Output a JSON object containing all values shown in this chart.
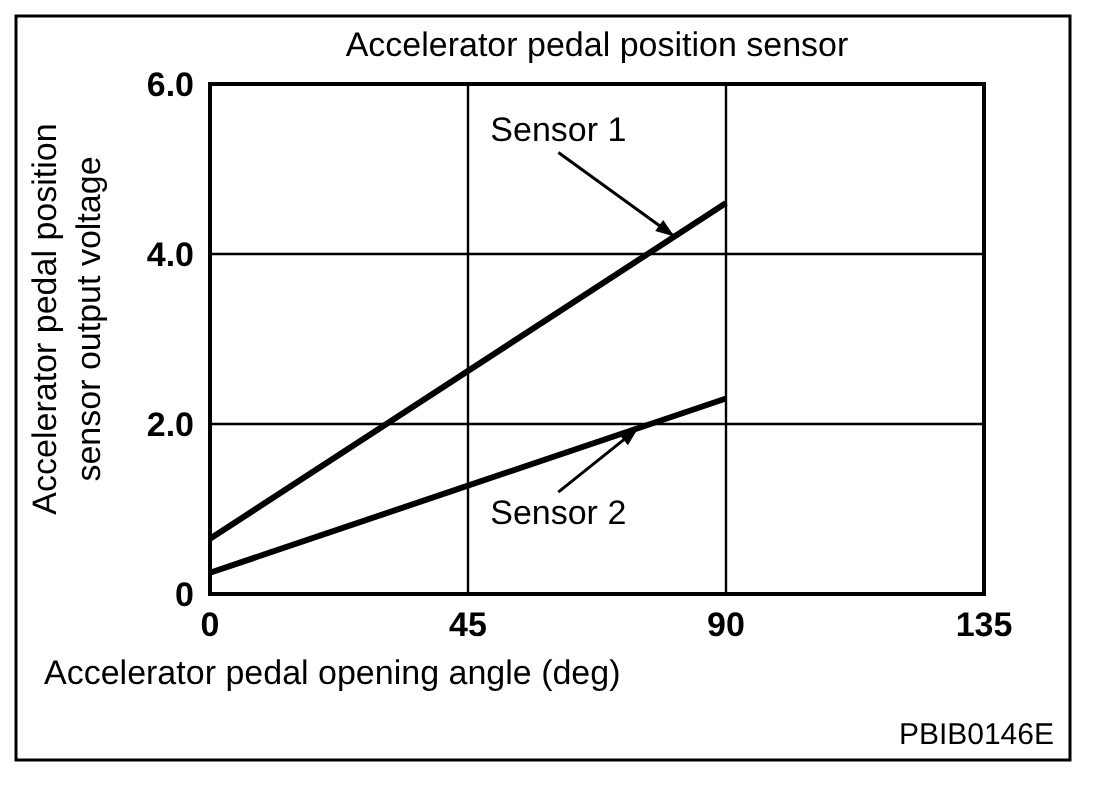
{
  "chart_data": {
    "type": "line",
    "title": "Accelerator pedal position sensor",
    "xlabel": "Accelerator pedal opening angle (deg)",
    "ylabel": "Accelerator pedal position\nsensor output voltage",
    "x": [
      0,
      90
    ],
    "series": [
      {
        "name": "Sensor 1",
        "color": "#000000",
        "values": [
          0.65,
          4.6
        ]
      },
      {
        "name": "Sensor 2",
        "color": "#000000",
        "values": [
          0.25,
          2.3
        ]
      }
    ],
    "xlim": [
      0,
      135
    ],
    "xticks": [
      0,
      45,
      90,
      135
    ],
    "ylim": [
      0,
      6
    ],
    "yticks": [
      0,
      {
        "value": 2,
        "label": "2.0"
      },
      {
        "value": 4,
        "label": "4.0"
      },
      {
        "value": 6,
        "label": "6.0"
      }
    ],
    "grid": true,
    "marker": "none",
    "line_style": "solid",
    "annotations": [
      "PBIB0146E"
    ]
  }
}
